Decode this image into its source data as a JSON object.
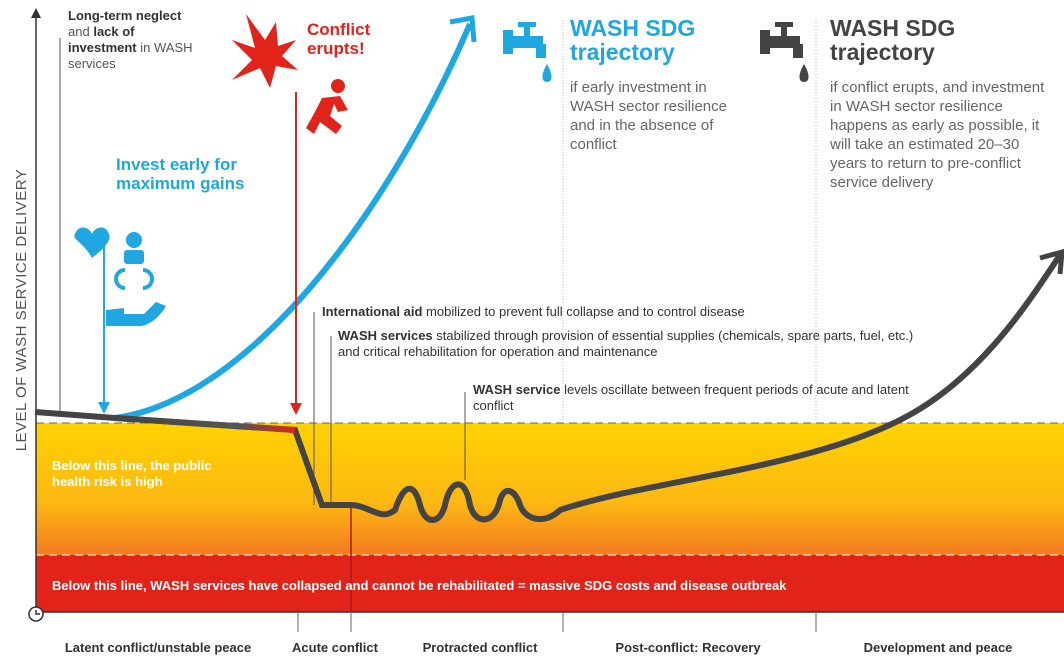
{
  "y_axis_label": "LEVEL OF WASH SERVICE DELIVERY",
  "neglect": [
    "Long-term neglect",
    "and",
    "lack of investment",
    "in WASH services"
  ],
  "conflict": "Conflict erupts!",
  "invest": "Invest early for maximum gains",
  "sdg_early": {
    "title": "WASH SDG trajectory",
    "body": "if early investment in WASH sector resilience and in the absence of conflict"
  },
  "sdg_conflict": {
    "title": "WASH SDG trajectory",
    "body": "if conflict erupts, and investment in WASH sector resilience happens as early as possible, it will take an estimated 20–30 years to return to pre-conflict service delivery"
  },
  "aid": [
    "International aid",
    "mobilized to prevent full collapse and to control disease"
  ],
  "stabilized": [
    "WASH services",
    "stabilized through provision of essential supplies (chemicals, spare parts, fuel, etc.) and critical rehabilitation for operation and maintenance"
  ],
  "oscillate": [
    "WASH service",
    "levels oscillate between frequent periods of acute and latent conflict"
  ],
  "zones": [
    "Below this line, the public health risk is high",
    "Below this line, WASH services have collapsed and cannot be rehabilitated = massive SDG costs and disease outbreak"
  ],
  "phases": [
    "Latent conflict/unstable peace",
    "Acute conflict",
    "Protracted conflict",
    "Post-conflict: Recovery",
    "Development and peace"
  ]
}
